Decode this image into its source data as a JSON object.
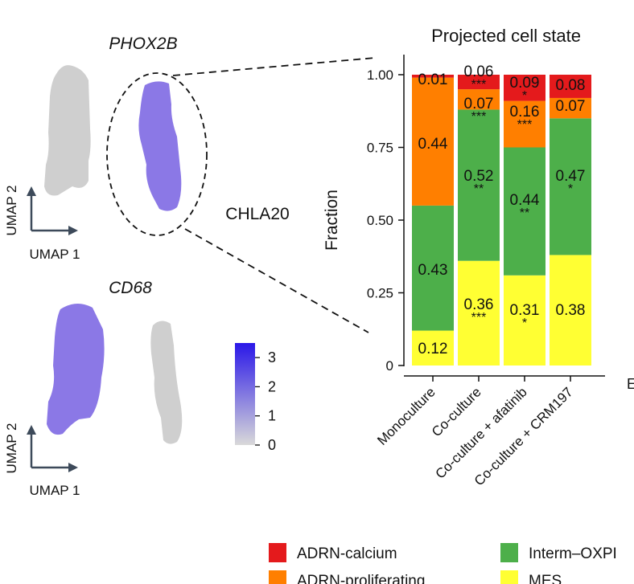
{
  "umap_panel": {
    "top_gene": "PHOX2B",
    "bottom_gene": "CD68",
    "cell_line": "CHLA20",
    "umap1": "UMAP 1",
    "umap2": "UMAP 2",
    "colorbar_ticks": [
      "3",
      "2",
      "1",
      "0"
    ],
    "colorbar_range": [
      0,
      3.5
    ],
    "colors": {
      "low": "#d9d9d9",
      "high": "#2a17e8"
    }
  },
  "chart_data": {
    "type": "bar",
    "stacked": true,
    "title": "Projected cell state",
    "ylabel": "Fraction",
    "xlabel": "",
    "ylim": [
      0,
      1
    ],
    "yticks": [
      "0",
      "0.25",
      "0.50",
      "0.75",
      "1.00"
    ],
    "categories": [
      "Monoculture",
      "Co-culture",
      "Co-culture + afatinib",
      "Co-culture + CRM197"
    ],
    "series": [
      {
        "name": "MES",
        "color": "#ffff33",
        "values": [
          0.12,
          0.36,
          0.31,
          0.38
        ],
        "labels": [
          "0.12",
          "0.36",
          "0.31",
          "0.38"
        ],
        "stars": [
          "",
          "***",
          "*",
          ""
        ]
      },
      {
        "name": "Interm–OXPHOS",
        "color": "#4daf4a",
        "values": [
          0.43,
          0.52,
          0.44,
          0.47
        ],
        "labels": [
          "0.43",
          "0.52",
          "0.44",
          "0.47"
        ],
        "stars": [
          "",
          "**",
          "**",
          "*"
        ]
      },
      {
        "name": "ADRN-proliferating",
        "color": "#ff7f00",
        "values": [
          0.44,
          0.07,
          0.16,
          0.07
        ],
        "labels": [
          "0.44",
          "0.07",
          "0.16",
          "0.07"
        ],
        "stars": [
          "",
          "***",
          "***",
          ""
        ]
      },
      {
        "name": "ADRN-calcium",
        "color": "#e41a1c",
        "values": [
          0.01,
          0.06,
          0.09,
          0.08
        ],
        "labels": [
          "0.01",
          "0.06",
          "0.09",
          "0.08"
        ],
        "stars": [
          "",
          "***",
          "*",
          ""
        ]
      }
    ],
    "legend": [
      "ADRN-calcium",
      "Interm–OXPI",
      "ADRN-proliferating",
      "MES"
    ],
    "edge_letter": "E"
  }
}
